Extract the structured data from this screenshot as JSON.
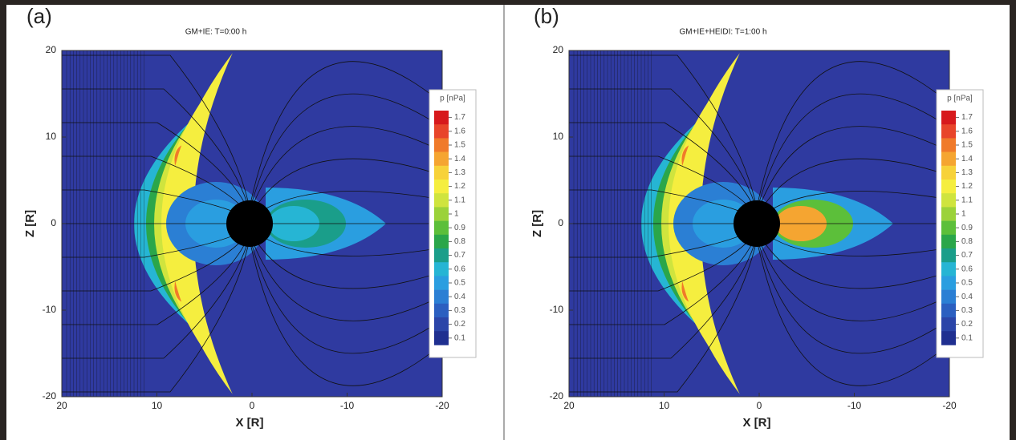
{
  "chart_data": [
    {
      "type": "contour",
      "panel_label": "(a)",
      "title": "GM+IE: T=0:00 h",
      "xlabel": "X [R]",
      "ylabel": "Z [R]",
      "xlim": [
        20,
        -20
      ],
      "ylim": [
        -20,
        20
      ],
      "xticks": [
        20,
        10,
        0,
        -10,
        -20
      ],
      "yticks": [
        20,
        10,
        0,
        -10,
        -20
      ],
      "colorbar": {
        "title": "p [nPa]",
        "ticks": [
          1.7,
          1.6,
          1.5,
          1.4,
          1.3,
          1.2,
          1.1,
          1,
          0.9,
          0.8,
          0.7,
          0.6,
          0.5,
          0.4,
          0.3,
          0.2,
          0.1
        ],
        "colors": [
          "#d7191c",
          "#e8452a",
          "#f07a2a",
          "#f5a531",
          "#f7d23a",
          "#f5ee3f",
          "#cfe43e",
          "#9bd23a",
          "#5cbf3a",
          "#2aa64a",
          "#1a9e8a",
          "#26b5d4",
          "#2a9ee0",
          "#2b7fd4",
          "#2b5fc0",
          "#2b45a8",
          "#1f2f90"
        ]
      }
    },
    {
      "type": "contour",
      "panel_label": "(b)",
      "title": "GM+IE+HEIDI: T=1:00 h",
      "xlabel": "X [R]",
      "ylabel": "Z [R]",
      "xlim": [
        20,
        -20
      ],
      "ylim": [
        -20,
        20
      ],
      "xticks": [
        20,
        10,
        0,
        -10,
        -20
      ],
      "yticks": [
        20,
        10,
        0,
        -10,
        -20
      ],
      "colorbar": {
        "title": "p [nPa]",
        "ticks": [
          1.7,
          1.6,
          1.5,
          1.4,
          1.3,
          1.2,
          1.1,
          1,
          0.9,
          0.8,
          0.7,
          0.6,
          0.5,
          0.4,
          0.3,
          0.2,
          0.1
        ],
        "colors": [
          "#d7191c",
          "#e8452a",
          "#f07a2a",
          "#f5a531",
          "#f7d23a",
          "#f5ee3f",
          "#cfe43e",
          "#9bd23a",
          "#5cbf3a",
          "#2aa64a",
          "#1a9e8a",
          "#26b5d4",
          "#2a9ee0",
          "#2b7fd4",
          "#2b5fc0",
          "#2b45a8",
          "#1f2f90"
        ]
      }
    }
  ]
}
